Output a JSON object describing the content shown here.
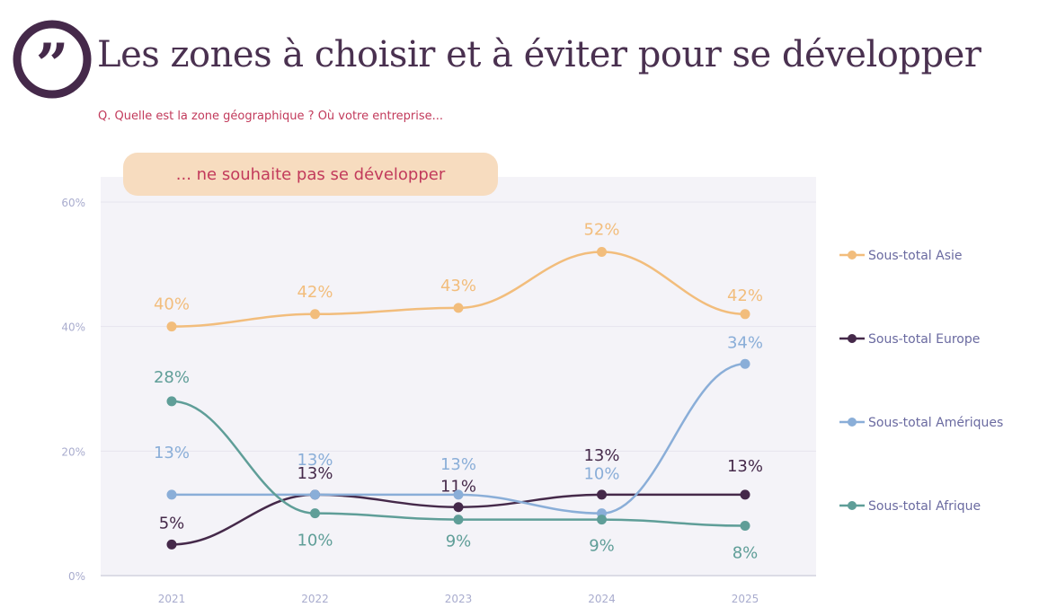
{
  "header": {
    "title": "Les zones à choisir et à éviter pour se développer",
    "question": "Q. Quelle est la zone géographique ? Où votre entreprise...",
    "subtitle": "... ne souhaite pas se développer",
    "logo_icon": "quote-icon"
  },
  "chart_data": {
    "type": "line",
    "categories": [
      "2021",
      "2022",
      "2023",
      "2024",
      "2025"
    ],
    "ylim": [
      0,
      60
    ],
    "yticks": [
      "0%",
      "20%",
      "40%",
      "60%"
    ],
    "grid": true,
    "legend_placement": "right",
    "series": [
      {
        "name": "Sous-total Asie",
        "color": "#f2bd7c",
        "values": [
          40,
          42,
          43,
          52,
          42
        ],
        "labels": [
          "40%",
          "42%",
          "43%",
          "52%",
          "42%"
        ]
      },
      {
        "name": "Sous-total Europe",
        "color": "#45294a",
        "values": [
          5,
          13,
          11,
          13,
          13
        ],
        "labels": [
          "5%",
          "13%",
          "11%",
          "13%",
          "13%"
        ]
      },
      {
        "name": "Sous-total Amériques",
        "color": "#8aaed8",
        "values": [
          13,
          13,
          13,
          10,
          34
        ],
        "labels": [
          "13%",
          "13%",
          "13%",
          "10%",
          "34%"
        ]
      },
      {
        "name": "Sous-total Afrique",
        "color": "#5f9e98",
        "values": [
          28,
          10,
          9,
          9,
          8
        ],
        "labels": [
          "28%",
          "10%",
          "9%",
          "9%",
          "8%"
        ]
      }
    ]
  }
}
